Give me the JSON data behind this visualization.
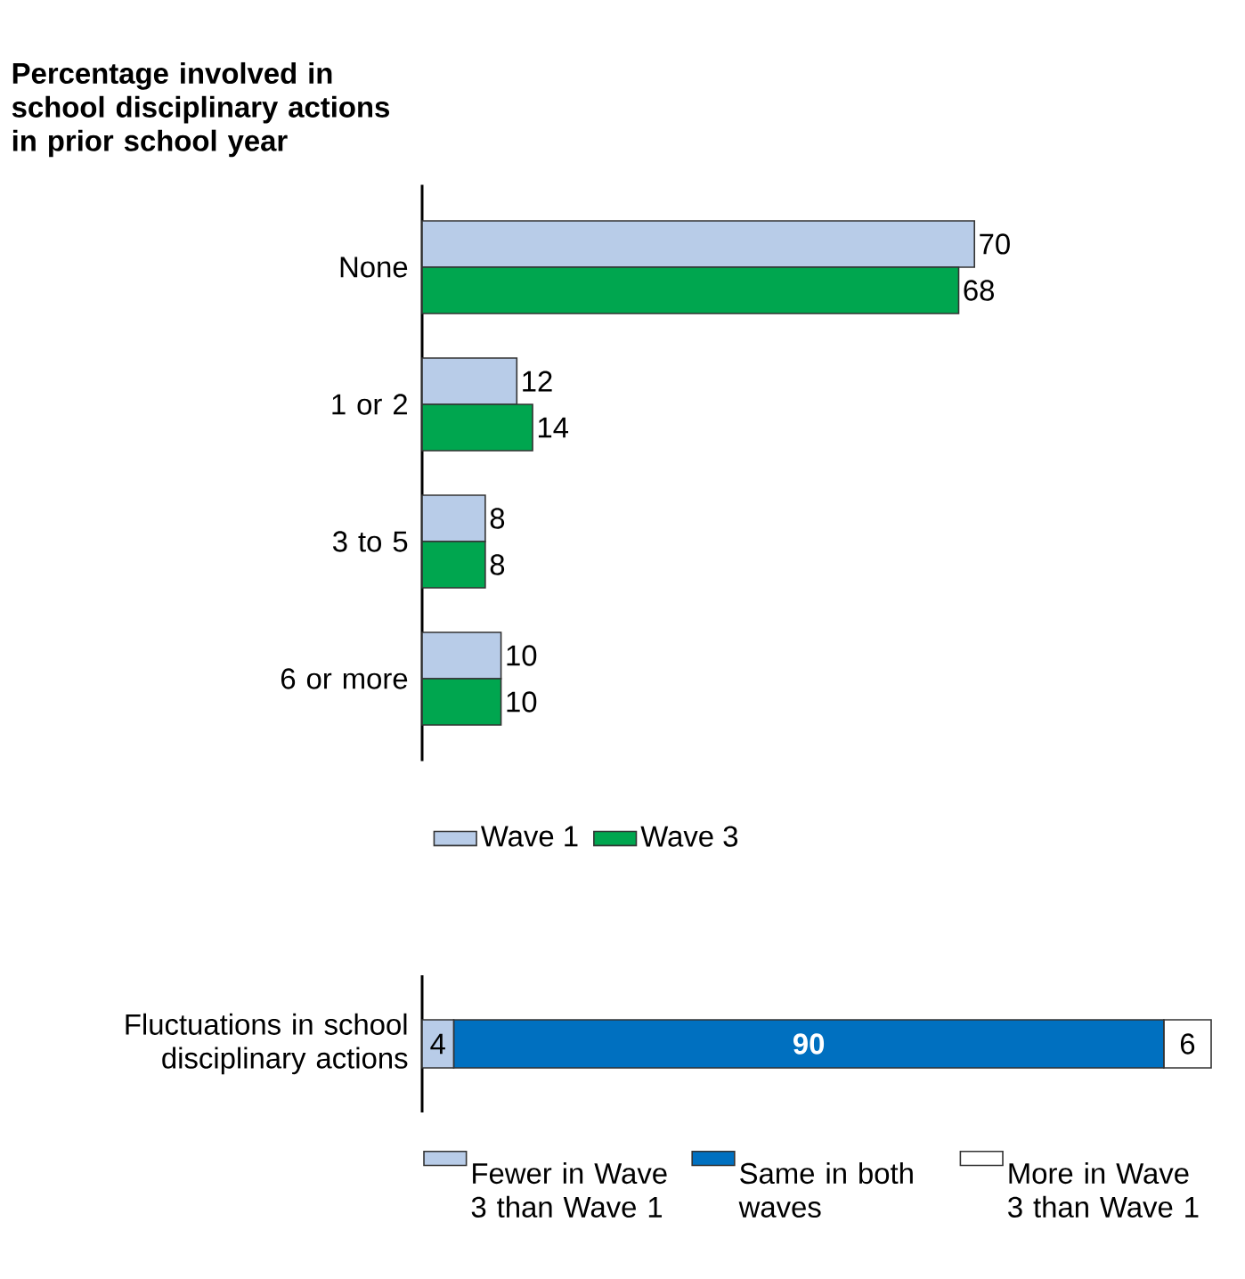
{
  "chart_data": [
    {
      "type": "bar",
      "orientation": "horizontal",
      "title": "Percentage involved in school disciplinary actions in prior school year",
      "categories": [
        "None",
        "1 or 2",
        "3 to 5",
        "6 or more"
      ],
      "series": [
        {
          "name": "Wave 1",
          "color": "#b8cce8",
          "values": [
            70,
            12,
            8,
            10
          ]
        },
        {
          "name": "Wave 3",
          "color": "#00a64f",
          "values": [
            68,
            14,
            8,
            10
          ]
        }
      ],
      "data_labels": true,
      "legend": "bottom"
    },
    {
      "type": "bar",
      "orientation": "horizontal",
      "stacked": true,
      "categories": [
        "Fluctuations in school disciplinary actions"
      ],
      "series": [
        {
          "name": "Fewer in Wave 3 than Wave 1",
          "color": "#b8cce8",
          "values": [
            4
          ]
        },
        {
          "name": "Same in both waves",
          "color": "#0070c0",
          "values": [
            90
          ]
        },
        {
          "name": "More in Wave 3 than Wave 1",
          "color": "#ffffff",
          "values": [
            6
          ]
        }
      ],
      "data_labels": true,
      "legend": "bottom"
    }
  ]
}
